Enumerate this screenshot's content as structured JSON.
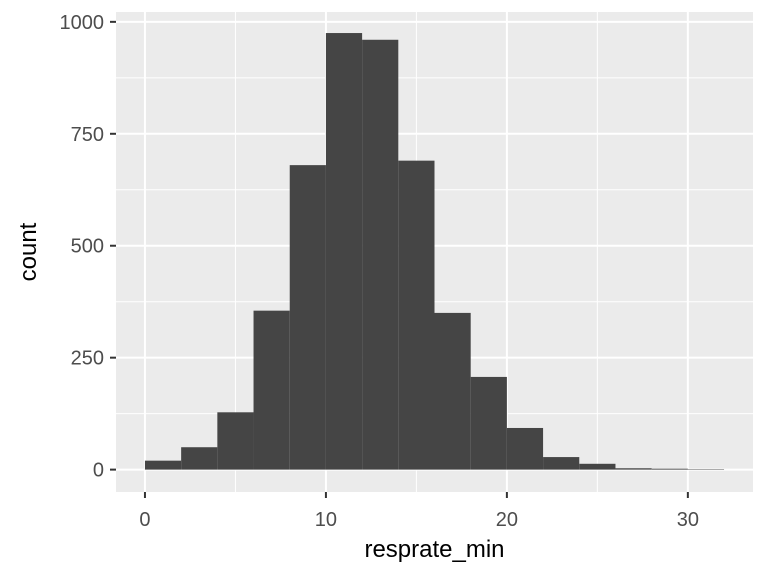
{
  "chart_data": {
    "type": "bar",
    "subtype": "histogram",
    "title": "",
    "xlabel": "resprate_min",
    "ylabel": "count",
    "xlim": [
      -1.6,
      33.6
    ],
    "ylim": [
      -50,
      1022
    ],
    "x_ticks": [
      0,
      10,
      20,
      30
    ],
    "y_ticks": [
      0,
      250,
      500,
      750,
      1000
    ],
    "grid": true,
    "legend": "none",
    "bins": [
      {
        "x0": 0,
        "x1": 2,
        "count": 20
      },
      {
        "x0": 2,
        "x1": 4,
        "count": 50
      },
      {
        "x0": 4,
        "x1": 6,
        "count": 128
      },
      {
        "x0": 6,
        "x1": 8,
        "count": 355
      },
      {
        "x0": 8,
        "x1": 10,
        "count": 680
      },
      {
        "x0": 10,
        "x1": 12,
        "count": 975
      },
      {
        "x0": 12,
        "x1": 14,
        "count": 960
      },
      {
        "x0": 14,
        "x1": 16,
        "count": 690
      },
      {
        "x0": 16,
        "x1": 18,
        "count": 350
      },
      {
        "x0": 18,
        "x1": 20,
        "count": 207
      },
      {
        "x0": 20,
        "x1": 22,
        "count": 93
      },
      {
        "x0": 22,
        "x1": 24,
        "count": 28
      },
      {
        "x0": 24,
        "x1": 26,
        "count": 13
      },
      {
        "x0": 26,
        "x1": 28,
        "count": 3
      },
      {
        "x0": 28,
        "x1": 30,
        "count": 2
      },
      {
        "x0": 30,
        "x1": 32,
        "count": 1
      }
    ],
    "colors": {
      "panel_background": "#ebebeb",
      "grid_major": "#ffffff",
      "bar_fill": "#454545",
      "tick_label": "#4d4d4d",
      "tick_mark": "#333333"
    }
  }
}
